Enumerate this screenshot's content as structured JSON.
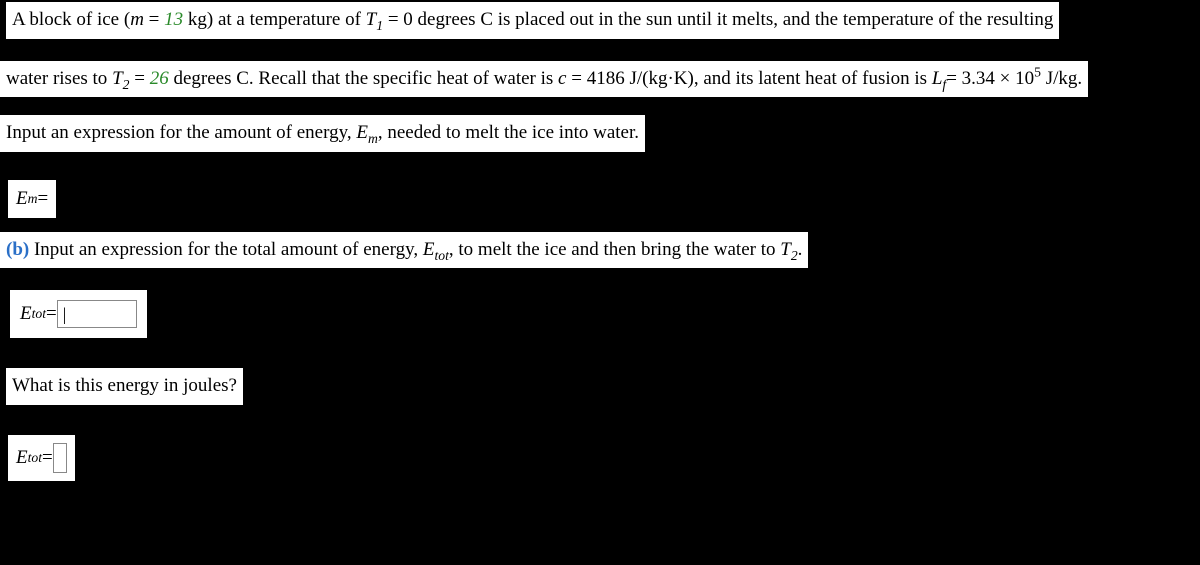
{
  "problem": {
    "line1_a": "A block of ice (",
    "var_m": "m",
    "eq1": " = ",
    "mass": "13",
    "line1_b": " kg) at a temperature of ",
    "var_T1": "T",
    "sub_1": "1",
    "eq2": " = 0 degrees C is placed out in the sun until it melts, and the temperature of the resulting",
    "line2_a": "water rises to ",
    "var_T2": "T",
    "sub_2": "2",
    "eq3": " = ",
    "temp2": "26",
    "line2_b": " degrees C. Recall that the specific heat of water is ",
    "var_c": "c",
    "c_val": " = 4186 J/(kg·K), and its latent heat of fusion is ",
    "var_Lf": "L",
    "sub_f": "f",
    "lf_val": "= 3.34 × 10",
    "lf_exp": "5",
    "lf_unit": " J/kg."
  },
  "partA": {
    "prompt_a": "Input an expression for the amount of energy, ",
    "var_Em": "E",
    "sub_m": "m",
    "prompt_b": ", needed to melt the ice into water.",
    "answer_label_var": "E",
    "answer_label_sub": "m",
    "answer_eq": " ="
  },
  "partB": {
    "label": "(b)",
    "prompt_a": "  Input an expression for the total amount of energy, ",
    "var_Etot": "E",
    "sub_tot": "tot",
    "prompt_b": ", to melt the ice and then bring the water to ",
    "var_T2": "T",
    "sub_2": "2",
    "period": ".",
    "answer_label_var": "E",
    "answer_label_sub": "tot",
    "answer_eq": " = ",
    "placeholder": "|"
  },
  "partC": {
    "prompt": "What is this energy in joules?",
    "answer_label_var": "E",
    "answer_label_sub": "tot",
    "answer_eq": " ="
  }
}
